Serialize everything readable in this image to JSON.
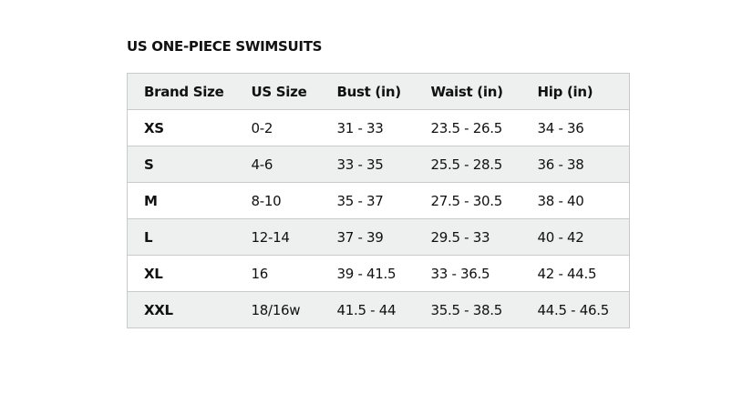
{
  "title": "US ONE-PIECE SWIMSUITS",
  "table": {
    "header": [
      "Brand Size",
      "US Size",
      "Bust (in)",
      "Waist (in)",
      "Hip (in)"
    ],
    "rows": [
      [
        "XS",
        "0-2",
        "31 - 33",
        "23.5 - 26.5",
        "34 - 36"
      ],
      [
        "S",
        "4-6",
        "33 - 35",
        "25.5 - 28.5",
        "36 - 38"
      ],
      [
        "M",
        "8-10",
        "35 - 37",
        "27.5 - 30.5",
        "38 - 40"
      ],
      [
        "L",
        "12-14",
        "37 - 39",
        "29.5 - 33",
        "40 - 42"
      ],
      [
        "XL",
        "16",
        "39 - 41.5",
        "33 - 36.5",
        "42 - 44.5"
      ],
      [
        "XXL",
        "18/16w",
        "41.5 - 44",
        "35.5 - 38.5",
        "44.5 - 46.5"
      ]
    ]
  }
}
